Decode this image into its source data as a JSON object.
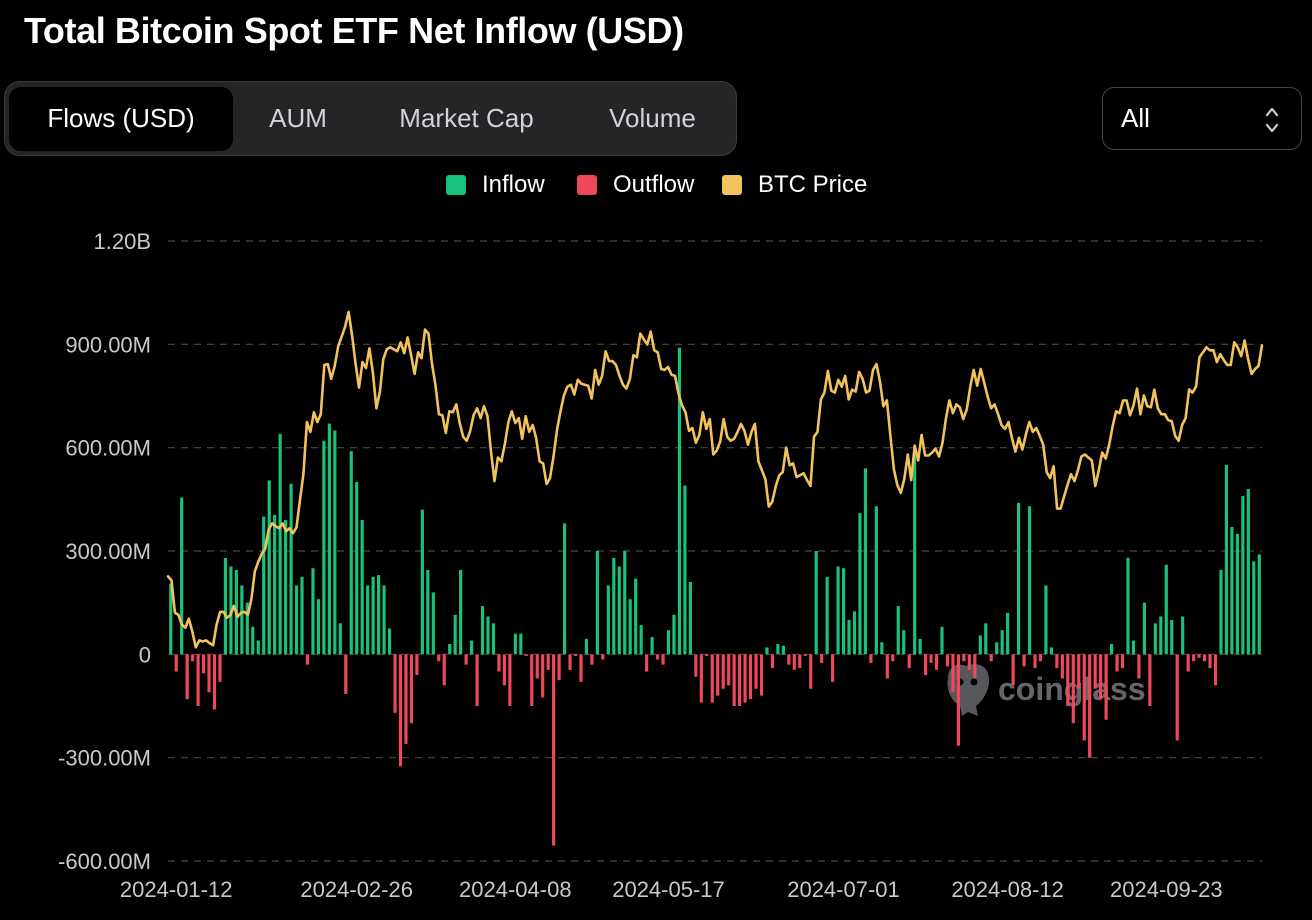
{
  "title": "Total Bitcoin Spot ETF Net Inflow (USD)",
  "tabs": [
    {
      "label": "Flows (USD)",
      "active": true
    },
    {
      "label": "AUM",
      "active": false
    },
    {
      "label": "Market Cap",
      "active": false
    },
    {
      "label": "Volume",
      "active": false
    }
  ],
  "range_select": {
    "value": "All"
  },
  "watermark": "coinglass",
  "icons": {
    "range_select": "updown-chevron-icon",
    "watermark": "coinglass-logo-icon"
  },
  "colors": {
    "background": "#000000",
    "inflow": "#18c27b",
    "outflow": "#f0485b",
    "price": "#f2c25c",
    "grid": "#4a4a4a",
    "axis_text": "#c8c9cc",
    "tab_bar": "#242526"
  },
  "chart_data": {
    "type": "bar",
    "legend": {
      "position": "top-center",
      "entries": [
        {
          "label": "Inflow",
          "color": "#18c27b"
        },
        {
          "label": "Outflow",
          "color": "#f0485b"
        },
        {
          "label": "BTC Price",
          "color": "#f2c25c"
        }
      ]
    },
    "grid": true,
    "y_axis": {
      "ylim": [
        -600,
        1200
      ],
      "unit": "million USD",
      "ticks": [
        {
          "value": 1200,
          "label": "1.20B"
        },
        {
          "value": 900,
          "label": "900.00M"
        },
        {
          "value": 600,
          "label": "600.00M"
        },
        {
          "value": 300,
          "label": "300.00M"
        },
        {
          "value": 0,
          "label": "0"
        },
        {
          "value": -300,
          "label": "-300.00M"
        },
        {
          "value": -600,
          "label": "-600.00M"
        }
      ]
    },
    "x_axis": {
      "tick_labels": [
        "2024-01-12",
        "2024-02-26",
        "2024-04-08",
        "2024-05-17",
        "2024-07-01",
        "2024-08-12",
        "2024-09-23"
      ],
      "tick_days": [
        1,
        34,
        63,
        91,
        123,
        153,
        182
      ]
    },
    "series": [
      {
        "name": "Net Flow",
        "kind": "bar",
        "values": [
          205,
          -50,
          455,
          -130,
          -20,
          -150,
          -55,
          -110,
          -160,
          -80,
          280,
          255,
          245,
          200,
          150,
          80,
          40,
          400,
          505,
          405,
          640,
          390,
          495,
          200,
          225,
          -30,
          250,
          160,
          620,
          670,
          650,
          90,
          -115,
          590,
          500,
          390,
          200,
          225,
          230,
          200,
          75,
          -170,
          -325,
          -260,
          -200,
          -60,
          420,
          245,
          180,
          -20,
          -90,
          30,
          115,
          245,
          -30,
          40,
          -150,
          140,
          110,
          90,
          -50,
          -90,
          -150,
          60,
          60,
          -5,
          -150,
          -70,
          -125,
          -45,
          -555,
          -75,
          380,
          -45,
          -5,
          -80,
          45,
          -30,
          300,
          -15,
          200,
          280,
          255,
          300,
          160,
          220,
          85,
          -50,
          50,
          -15,
          -30,
          70,
          115,
          890,
          490,
          210,
          -65,
          -140,
          -5,
          -140,
          -120,
          -100,
          -90,
          -150,
          -150,
          -140,
          -130,
          -100,
          -120,
          20,
          -40,
          30,
          25,
          -30,
          -45,
          -40,
          -5,
          -100,
          300,
          -25,
          225,
          -80,
          255,
          250,
          100,
          125,
          410,
          540,
          -25,
          430,
          35,
          -70,
          -20,
          140,
          70,
          -40,
          590,
          45,
          -60,
          -25,
          -45,
          80,
          -35,
          -110,
          -265,
          -20,
          -45,
          -70,
          55,
          90,
          -20,
          35,
          70,
          120,
          -90,
          440,
          -35,
          430,
          -40,
          -20,
          200,
          20,
          -40,
          -70,
          -150,
          -200,
          -100,
          -250,
          -300,
          -100,
          -130,
          -190,
          30,
          -50,
          -40,
          280,
          40,
          -70,
          150,
          -150,
          90,
          110,
          260,
          100,
          -250,
          110,
          -50,
          -20,
          -10,
          -20,
          -40,
          -90,
          245,
          550,
          370,
          350,
          460,
          480,
          270,
          290
        ]
      },
      {
        "name": "BTC Price",
        "kind": "line",
        "price_min": 38000,
        "price_max": 74000,
        "values": [
          46700,
          46300,
          43000,
          42800,
          41800,
          41500,
          42400,
          41100,
          39500,
          40200,
          40100,
          40200,
          39900,
          39700,
          41800,
          43100,
          43100,
          42500,
          42800,
          43700,
          42600,
          43000,
          43100,
          42800,
          44400,
          47200,
          48200,
          49000,
          49500,
          51500,
          52100,
          51800,
          51600,
          52100,
          51300,
          51600,
          51100,
          51700,
          54500,
          57100,
          62400,
          61400,
          63400,
          62400,
          63200,
          68200,
          68300,
          66800,
          68100,
          70100,
          71100,
          72100,
          73600,
          71200,
          68400,
          65900,
          68500,
          67900,
          69900,
          67400,
          63800,
          65500,
          68800,
          69800,
          70000,
          69800,
          69600,
          70500,
          69400,
          71000,
          69200,
          67300,
          69500,
          68900,
          71800,
          71400,
          68400,
          66200,
          63200,
          63100,
          61300,
          63500,
          63400,
          64200,
          62300,
          60900,
          60500,
          61500,
          63100,
          63800,
          62800,
          64000,
          63000,
          59400,
          56400,
          58800,
          58400,
          60200,
          62400,
          63500,
          62300,
          62800,
          60700,
          63000,
          61400,
          62100,
          60800,
          58400,
          58200,
          56100,
          56700,
          58900,
          61600,
          63500,
          65100,
          66000,
          66200,
          65200,
          66700,
          66300,
          66200,
          66100,
          64800,
          67700,
          66200,
          67100,
          69600,
          68600,
          68600,
          68200,
          67100,
          66200,
          65800,
          66800,
          69200,
          69000,
          71400,
          70800,
          70300,
          71600,
          69700,
          69500,
          67800,
          67700,
          68000,
          67200,
          67100,
          65300,
          64100,
          63400,
          61500,
          61800,
          60300,
          61100,
          63400,
          61700,
          62700,
          59100,
          59500,
          60400,
          62700,
          60900,
          60500,
          60700,
          61400,
          62200,
          61500,
          60100,
          61400,
          62200,
          58400,
          57500,
          56600,
          53800,
          54300,
          55900,
          57000,
          57300,
          59800,
          58000,
          58200,
          56800,
          57000,
          57200,
          56500,
          55900,
          60900,
          61400,
          64700,
          65400,
          67600,
          65600,
          65400,
          66700,
          66000,
          67100,
          64700,
          65700,
          65500,
          67500,
          66800,
          65400,
          65600,
          67700,
          68300,
          66500,
          64000,
          64600,
          61000,
          57600,
          56000,
          55200,
          56600,
          59100,
          56500,
          60000,
          58500,
          61100,
          59000,
          59000,
          59300,
          59700,
          58900,
          60300,
          62800,
          64600,
          63300,
          64200,
          63900,
          62700,
          63700,
          66000,
          67700,
          66100,
          67800,
          66400,
          65000,
          63800,
          64200,
          63200,
          62100,
          61700,
          62400,
          60800,
          59400,
          60800,
          59600,
          61100,
          62400,
          61400,
          61800,
          61000,
          60100,
          57300,
          56700,
          57900,
          53600,
          53600,
          54800,
          56000,
          57100,
          56400,
          57500,
          58900,
          59100,
          58800,
          58500,
          55900,
          57500,
          59300,
          58700,
          60100,
          62000,
          63500,
          63300,
          64600,
          64600,
          63100,
          64100,
          65800,
          63200,
          65100,
          64000,
          63900,
          65700,
          63800,
          63200,
          63200,
          62600,
          62500,
          61000,
          60500,
          62100,
          62800,
          65700,
          65400,
          66000,
          69000,
          69500,
          70000,
          69700,
          69700,
          68500,
          69300,
          68700,
          68200,
          68200,
          70500,
          70000,
          69100,
          70700,
          68800,
          67300,
          67800,
          68100,
          70200
        ]
      }
    ]
  }
}
